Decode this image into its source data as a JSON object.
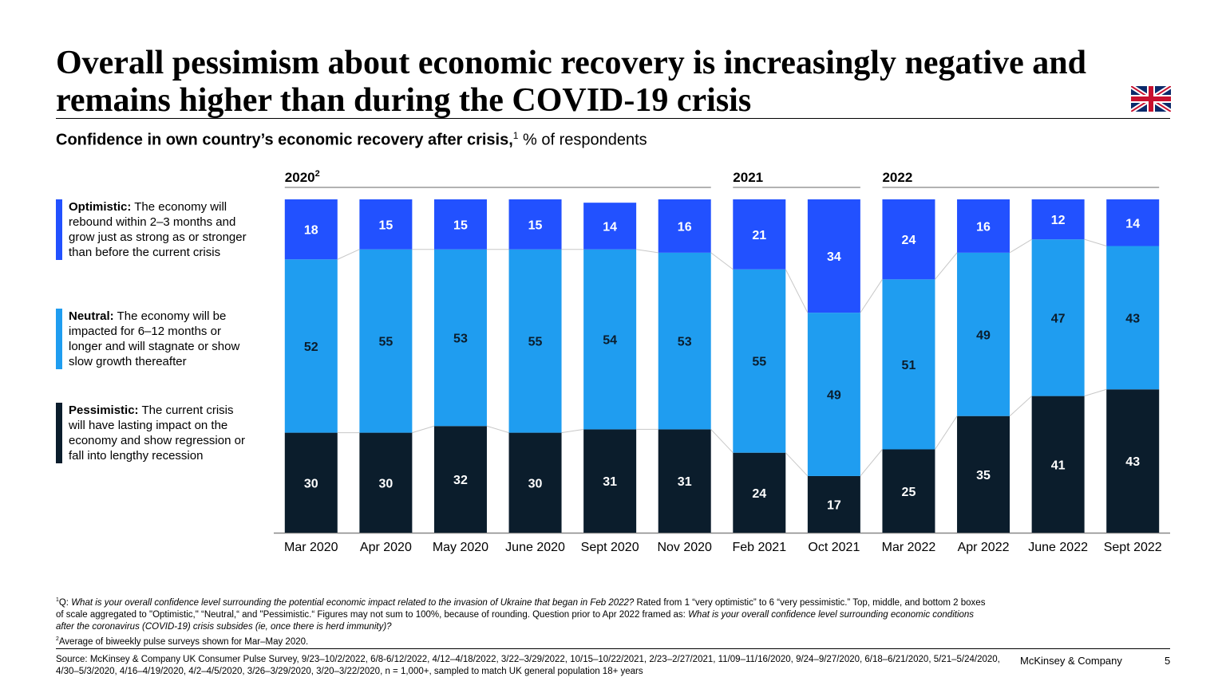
{
  "header": {
    "title": "Overall pessimism about economic recovery is increasingly negative and remains higher than during the COVID-19 crisis",
    "subtitle_bold": "Confidence in own country’s economic recovery after crisis,",
    "subtitle_sup": "1",
    "subtitle_rest": "% of respondents"
  },
  "chart_data": {
    "type": "stacked_bar",
    "categories": [
      "Mar 2020",
      "Apr 2020",
      "May 2020",
      "June 2020",
      "Sept 2020",
      "Nov 2020",
      "Feb 2021",
      "Oct 2021",
      "Mar 2022",
      "Apr 2022",
      "June 2022",
      "Sept 2022"
    ],
    "period_labels": [
      "2020",
      null,
      null,
      null,
      null,
      null,
      "2021",
      null,
      "2022",
      null,
      null,
      null
    ],
    "period_footnote": "2",
    "ylim": [
      0,
      100
    ],
    "series": [
      {
        "name": "Pessimistic:",
        "description": "The current crisis will have lasting impact on the economy and show regression or fall into lengthy recession",
        "color": "#0b1d2c",
        "label_color": "#ffffff",
        "values": [
          30,
          30,
          32,
          30,
          31,
          31,
          24,
          17,
          25,
          35,
          41,
          43
        ]
      },
      {
        "name": "Neutral:",
        "description": "The economy will be impacted for 6–12 months or longer and will stagnate or show slow growth thereafter",
        "color": "#1f9df0",
        "label_color": "#0b1d2c",
        "values": [
          52,
          55,
          53,
          55,
          54,
          53,
          55,
          49,
          51,
          49,
          47,
          43
        ]
      },
      {
        "name": "Optimistic:",
        "description": "The economy will rebound within 2–3 months and grow just as strong as or stronger than before the current crisis",
        "color": "#2251ff",
        "label_color": "#ffffff",
        "values": [
          18,
          15,
          15,
          15,
          14,
          16,
          21,
          34,
          24,
          16,
          12,
          14
        ]
      }
    ]
  },
  "footnotes": [
    {
      "marker": "1",
      "runs": [
        {
          "text": "Q: ",
          "italic": false
        },
        {
          "text": "What is your overall confidence level surrounding the potential economic impact related to the invasion of Ukraine that began in Feb 2022?",
          "italic": true
        },
        {
          "text": " Rated from 1 “very optimistic” to 6 “very pessimistic.” Top, middle, and bottom 2 boxes of scale aggregated to \"Optimistic,\" “Neutral,“ and \"Pessimistic.“ Figures may not sum to 100%, because of rounding. Question prior to Apr 2022 framed as: ",
          "italic": false
        },
        {
          "text": "What is your overall confidence level surrounding economic conditions after the coronavirus (COVID-19) crisis subsides (ie, once there is herd immunity)?",
          "italic": true
        }
      ]
    },
    {
      "marker": "2",
      "runs": [
        {
          "text": "Average of biweekly pulse surveys shown for Mar–May 2020.",
          "italic": false
        }
      ]
    }
  ],
  "footer": {
    "source": "Source: McKinsey & Company UK Consumer Pulse Survey, 9/23–10/2/2022, 6/8-6/12/2022, 4/12–4/18/2022, 3/22–3/29/2022, 10/15–10/22/2021, 2/23–2/27/2021, 11/09–11/16/2020, 9/24–9/27/2020, 6/18–6/21/2020, 5/21–5/24/2020, 4/30–5/3/2020, 4/16–4/19/2020, 4/2–4/5/2020, 3/26–3/29/2020, 3/20–3/22/2020, n = 1,000+, sampled to match UK general population 18+ years",
    "brand": "McKinsey & Company",
    "page": "5"
  }
}
